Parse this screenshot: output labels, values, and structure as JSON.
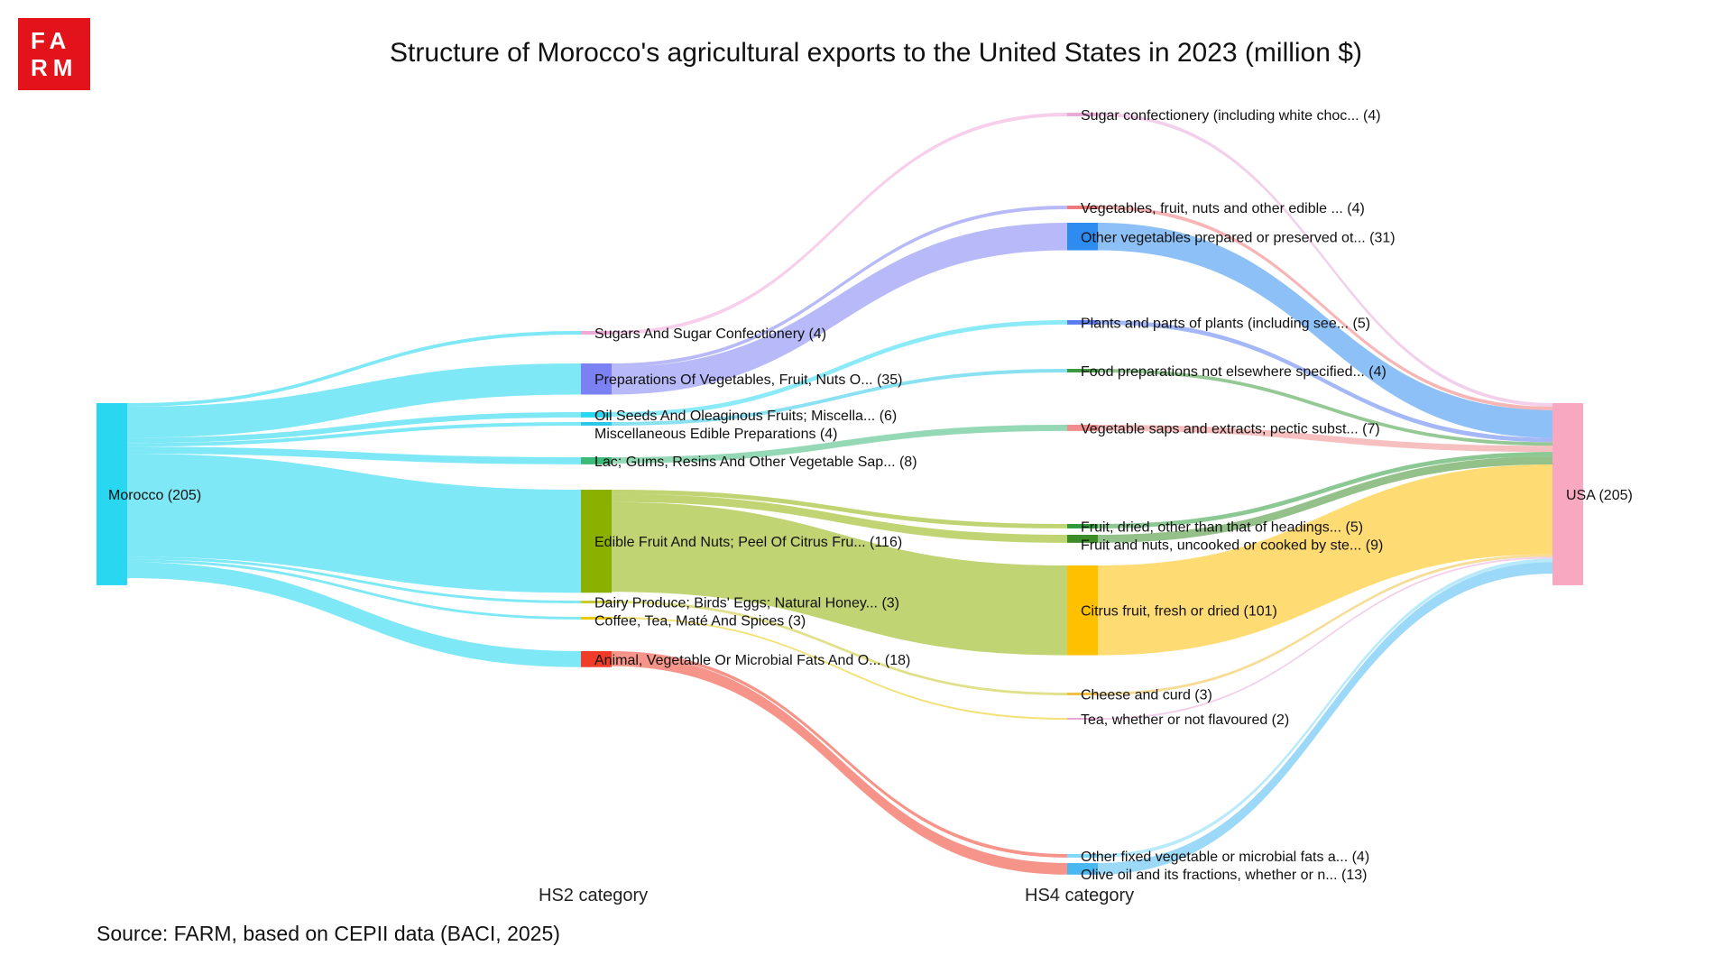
{
  "logo": {
    "text_line1": "FA",
    "text_line2": "RM",
    "color": "#e3131b"
  },
  "chart_data": {
    "type": "sankey",
    "title": "Structure of Morocco's agricultural exports to the United States in 2023 (million $)",
    "level_labels": [
      "HS2 category",
      "HS4 category"
    ],
    "source_note": "Source: FARM, based on CEPII data (BACI, 2025)",
    "nodes": [
      {
        "id": "morocco",
        "label": "Morocco",
        "value": 205,
        "level": 0,
        "color": "#29d8f0"
      },
      {
        "id": "hs2_sugars",
        "label": "Sugars And Sugar Confectionery",
        "value": 4,
        "level": 1,
        "color": "#f0a8d8"
      },
      {
        "id": "hs2_prep",
        "label": "Preparations Of Vegetables, Fruit, Nuts O...",
        "value": 35,
        "level": 1,
        "color": "#7b80f2"
      },
      {
        "id": "hs2_oilseeds",
        "label": "Oil Seeds And Oleaginous Fruits; Miscella...",
        "value": 6,
        "level": 1,
        "color": "#29d8f0"
      },
      {
        "id": "hs2_misc",
        "label": "Miscellaneous Edible Preparations",
        "value": 4,
        "level": 1,
        "color": "#29c8e8"
      },
      {
        "id": "hs2_lac",
        "label": "Lac; Gums, Resins And Other Vegetable Sap...",
        "value": 8,
        "level": 1,
        "color": "#3cb878"
      },
      {
        "id": "hs2_fruit",
        "label": "Edible Fruit And Nuts; Peel Of Citrus Fru...",
        "value": 116,
        "level": 1,
        "color": "#8cb000"
      },
      {
        "id": "hs2_dairy",
        "label": "Dairy Produce; Birds' Eggs; Natural Honey...",
        "value": 3,
        "level": 1,
        "color": "#c8c830"
      },
      {
        "id": "hs2_coffee",
        "label": "Coffee, Tea, Maté And Spices",
        "value": 3,
        "level": 1,
        "color": "#e8c800"
      },
      {
        "id": "hs2_fats",
        "label": "Animal, Vegetable Or Microbial Fats And O...",
        "value": 18,
        "level": 1,
        "color": "#f03c28"
      },
      {
        "id": "hs4_sugarconf",
        "label": "Sugar confectionery (including white choc...",
        "value": 4,
        "level": 2,
        "color": "#e8a8d8"
      },
      {
        "id": "hs4_vegedible",
        "label": "Vegetables, fruit, nuts and other edible ...",
        "value": 4,
        "level": 2,
        "color": "#f07878"
      },
      {
        "id": "hs4_otherveg",
        "label": "Other vegetables prepared or preserved ot...",
        "value": 31,
        "level": 2,
        "color": "#2e8cf0"
      },
      {
        "id": "hs4_plants",
        "label": "Plants and parts of plants (including see...",
        "value": 5,
        "level": 2,
        "color": "#5a7cf0"
      },
      {
        "id": "hs4_foodprep",
        "label": "Food preparations not elsewhere specified...",
        "value": 4,
        "level": 2,
        "color": "#3c9a3c"
      },
      {
        "id": "hs4_vegsaps",
        "label": "Vegetable saps and extracts; pectic subst...",
        "value": 7,
        "level": 2,
        "color": "#f08c8c"
      },
      {
        "id": "hs4_fruitdried",
        "label": "Fruit, dried, other than that of headings...",
        "value": 5,
        "level": 2,
        "color": "#2e9a3c"
      },
      {
        "id": "hs4_fruitnuts",
        "label": "Fruit and nuts, uncooked or cooked by ste...",
        "value": 9,
        "level": 2,
        "color": "#3c8c28"
      },
      {
        "id": "hs4_citrus",
        "label": "Citrus fruit, fresh or dried",
        "value": 101,
        "level": 2,
        "color": "#ffc000"
      },
      {
        "id": "hs4_cheese",
        "label": "Cheese and curd",
        "value": 3,
        "level": 2,
        "color": "#f0c040"
      },
      {
        "id": "hs4_tea",
        "label": "Tea, whether or not flavoured",
        "value": 2,
        "level": 2,
        "color": "#e8a8d8"
      },
      {
        "id": "hs4_otherfats",
        "label": "Other fixed vegetable or microbial fats a...",
        "value": 4,
        "level": 2,
        "color": "#7fd8f8"
      },
      {
        "id": "hs4_olive",
        "label": "Olive oil and its fractions, whether or n...",
        "value": 13,
        "level": 2,
        "color": "#4ab8f0"
      },
      {
        "id": "usa",
        "label": "USA",
        "value": 205,
        "level": 3,
        "color": "#f8a8c0"
      }
    ],
    "links": [
      {
        "source": "morocco",
        "target": "hs2_sugars",
        "value": 4
      },
      {
        "source": "morocco",
        "target": "hs2_prep",
        "value": 35
      },
      {
        "source": "morocco",
        "target": "hs2_oilseeds",
        "value": 6
      },
      {
        "source": "morocco",
        "target": "hs2_misc",
        "value": 4
      },
      {
        "source": "morocco",
        "target": "hs2_lac",
        "value": 8
      },
      {
        "source": "morocco",
        "target": "hs2_fruit",
        "value": 116
      },
      {
        "source": "morocco",
        "target": "hs2_dairy",
        "value": 3
      },
      {
        "source": "morocco",
        "target": "hs2_coffee",
        "value": 3
      },
      {
        "source": "morocco",
        "target": "hs2_fats",
        "value": 18
      },
      {
        "source": "hs2_sugars",
        "target": "hs4_sugarconf",
        "value": 4
      },
      {
        "source": "hs2_prep",
        "target": "hs4_vegedible",
        "value": 4
      },
      {
        "source": "hs2_prep",
        "target": "hs4_otherveg",
        "value": 31
      },
      {
        "source": "hs2_oilseeds",
        "target": "hs4_plants",
        "value": 5
      },
      {
        "source": "hs2_misc",
        "target": "hs4_foodprep",
        "value": 4
      },
      {
        "source": "hs2_lac",
        "target": "hs4_vegsaps",
        "value": 7
      },
      {
        "source": "hs2_fruit",
        "target": "hs4_fruitdried",
        "value": 5
      },
      {
        "source": "hs2_fruit",
        "target": "hs4_fruitnuts",
        "value": 9
      },
      {
        "source": "hs2_fruit",
        "target": "hs4_citrus",
        "value": 101
      },
      {
        "source": "hs2_dairy",
        "target": "hs4_cheese",
        "value": 3
      },
      {
        "source": "hs2_coffee",
        "target": "hs4_tea",
        "value": 2
      },
      {
        "source": "hs2_fats",
        "target": "hs4_otherfats",
        "value": 4
      },
      {
        "source": "hs2_fats",
        "target": "hs4_olive",
        "value": 13
      },
      {
        "source": "hs4_sugarconf",
        "target": "usa",
        "value": 4
      },
      {
        "source": "hs4_vegedible",
        "target": "usa",
        "value": 4
      },
      {
        "source": "hs4_otherveg",
        "target": "usa",
        "value": 31
      },
      {
        "source": "hs4_plants",
        "target": "usa",
        "value": 5
      },
      {
        "source": "hs4_foodprep",
        "target": "usa",
        "value": 4
      },
      {
        "source": "hs4_vegsaps",
        "target": "usa",
        "value": 7
      },
      {
        "source": "hs4_fruitdried",
        "target": "usa",
        "value": 5
      },
      {
        "source": "hs4_fruitnuts",
        "target": "usa",
        "value": 9
      },
      {
        "source": "hs4_citrus",
        "target": "usa",
        "value": 101
      },
      {
        "source": "hs4_cheese",
        "target": "usa",
        "value": 3
      },
      {
        "source": "hs4_tea",
        "target": "usa",
        "value": 2
      },
      {
        "source": "hs4_otherfats",
        "target": "usa",
        "value": 4
      },
      {
        "source": "hs4_olive",
        "target": "usa",
        "value": 13
      }
    ]
  }
}
